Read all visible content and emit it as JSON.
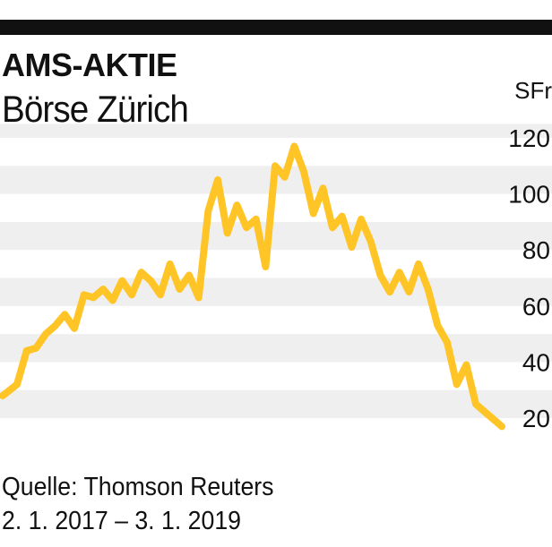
{
  "header": {
    "title": "AMS-AKTIE",
    "subtitle": "Börse Zürich",
    "unit": "SFr"
  },
  "footer": {
    "source": "Quelle: Thomson Reuters",
    "date_range": "2. 1. 2017   – 3. 1. 2019"
  },
  "colors": {
    "line": "#FFC425",
    "band": "#EFEFEF",
    "bar": "#111111"
  },
  "chart_data": {
    "type": "line",
    "title": "AMS-AKTIE",
    "subtitle": "Börse Zürich",
    "ylabel": "SFr",
    "ylim": [
      10,
      125
    ],
    "yticks": [
      20,
      40,
      60,
      80,
      100,
      120
    ],
    "xlim": [
      "2017-01-02",
      "2019-01-03"
    ],
    "grid": "horizontal bands",
    "series": [
      {
        "x": [
          "2017-01-02",
          "2017-01-23",
          "2017-02-06",
          "2017-02-20",
          "2017-03-06",
          "2017-03-20",
          "2017-04-03",
          "2017-04-17",
          "2017-05-01",
          "2017-05-15",
          "2017-05-29",
          "2017-06-12",
          "2017-06-26",
          "2017-07-10",
          "2017-07-24",
          "2017-08-07",
          "2017-08-21",
          "2017-09-04",
          "2017-09-18",
          "2017-10-02",
          "2017-10-16",
          "2017-10-30",
          "2017-11-13",
          "2017-11-27",
          "2017-12-11",
          "2017-12-25",
          "2018-01-08",
          "2018-01-22",
          "2018-02-05",
          "2018-02-19",
          "2018-03-05",
          "2018-03-19",
          "2018-04-02",
          "2018-04-16",
          "2018-04-30",
          "2018-05-14",
          "2018-05-28",
          "2018-06-11",
          "2018-06-25",
          "2018-07-09",
          "2018-07-23",
          "2018-08-06",
          "2018-08-20",
          "2018-09-03",
          "2018-09-17",
          "2018-10-01",
          "2018-10-15",
          "2018-10-29",
          "2018-11-12",
          "2018-11-26",
          "2018-12-10",
          "2019-01-03"
        ],
        "values": [
          28,
          32,
          44,
          45,
          50,
          53,
          57,
          52,
          64,
          63,
          66,
          62,
          69,
          64,
          72,
          69,
          64,
          75,
          66,
          71,
          63,
          94,
          105,
          86,
          96,
          88,
          91,
          74,
          110,
          106,
          117,
          108,
          93,
          102,
          88,
          92,
          81,
          91,
          83,
          71,
          65,
          72,
          65,
          75,
          66,
          53,
          47,
          32,
          39,
          25,
          22,
          17
        ]
      }
    ]
  }
}
